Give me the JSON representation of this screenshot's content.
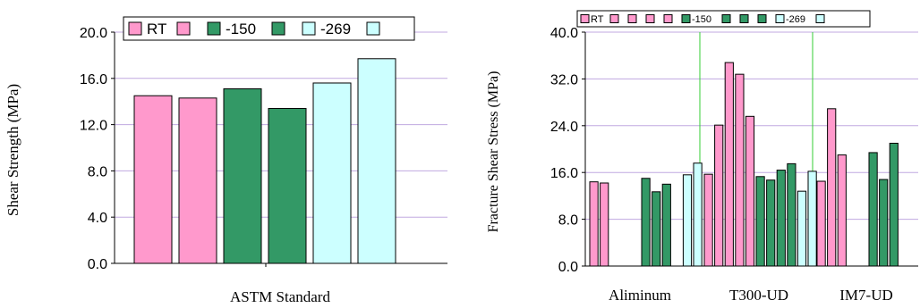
{
  "colors": {
    "rt": "#ff99cc",
    "c150": "#339966",
    "c269": "#ccffff",
    "edge": "#000000",
    "grid": "#c0a8e0",
    "divider": "#33cc33"
  },
  "chart_data": [
    {
      "type": "bar",
      "title": "",
      "xlabel": "ASTM Standard",
      "ylabel": "Shear Strength (MPa)",
      "ylim": [
        0,
        20
      ],
      "yticks": [
        "0.0",
        "4.0",
        "8.0",
        "12.0",
        "16.0",
        "20.0"
      ],
      "grid": true,
      "legend_position": "top",
      "legend": [
        {
          "label": "RT",
          "color": "#ff99cc"
        },
        {
          "label": "",
          "color": "#ff99cc"
        },
        {
          "label": "-150",
          "color": "#339966"
        },
        {
          "label": "",
          "color": "#339966"
        },
        {
          "label": "-269",
          "color": "#ccffff"
        },
        {
          "label": "",
          "color": "#ccffff"
        }
      ],
      "bars": [
        {
          "value": 14.5,
          "color": "#ff99cc"
        },
        {
          "value": 14.3,
          "color": "#ff99cc"
        },
        {
          "value": 15.1,
          "color": "#339966"
        },
        {
          "value": 13.4,
          "color": "#339966"
        },
        {
          "value": 15.6,
          "color": "#ccffff"
        },
        {
          "value": 17.7,
          "color": "#ccffff"
        }
      ]
    },
    {
      "type": "bar",
      "title": "",
      "xlabel": "",
      "ylabel": "Fracture Shear Stress (MPa)",
      "ylim": [
        0,
        40
      ],
      "yticks": [
        "0.0",
        "8.0",
        "16.0",
        "24.0",
        "32.0",
        "40.0"
      ],
      "grid": true,
      "legend_position": "top",
      "legend": [
        {
          "label": "RT",
          "color": "#ff99cc"
        },
        {
          "label": "",
          "color": "#ff99cc"
        },
        {
          "label": "",
          "color": "#ff99cc"
        },
        {
          "label": "",
          "color": "#ff99cc"
        },
        {
          "label": "",
          "color": "#ff99cc"
        },
        {
          "label": "-150",
          "color": "#339966"
        },
        {
          "label": "",
          "color": "#339966"
        },
        {
          "label": "",
          "color": "#339966"
        },
        {
          "label": "",
          "color": "#339966"
        },
        {
          "label": "-269",
          "color": "#ccffff"
        },
        {
          "label": "",
          "color": "#ccffff"
        }
      ],
      "groups": [
        {
          "label": "Aliminum",
          "bars": [
            {
              "value": 14.4,
              "color": "#ff99cc"
            },
            {
              "value": 14.2,
              "color": "#ff99cc"
            },
            {
              "value": 0,
              "color": "#ff99cc"
            },
            {
              "value": 0,
              "color": "#ff99cc"
            },
            {
              "value": 0,
              "color": "#ff99cc"
            },
            {
              "value": 15.0,
              "color": "#339966"
            },
            {
              "value": 12.7,
              "color": "#339966"
            },
            {
              "value": 14.0,
              "color": "#339966"
            },
            {
              "value": 0,
              "color": "#339966"
            },
            {
              "value": 15.6,
              "color": "#ccffff"
            },
            {
              "value": 17.6,
              "color": "#ccffff"
            }
          ]
        },
        {
          "label": "T300-UD",
          "bars": [
            {
              "value": 15.7,
              "color": "#ff99cc"
            },
            {
              "value": 24.1,
              "color": "#ff99cc"
            },
            {
              "value": 34.8,
              "color": "#ff99cc"
            },
            {
              "value": 32.8,
              "color": "#ff99cc"
            },
            {
              "value": 25.6,
              "color": "#ff99cc"
            },
            {
              "value": 15.3,
              "color": "#339966"
            },
            {
              "value": 14.7,
              "color": "#339966"
            },
            {
              "value": 16.4,
              "color": "#339966"
            },
            {
              "value": 17.5,
              "color": "#339966"
            },
            {
              "value": 12.8,
              "color": "#ccffff"
            },
            {
              "value": 16.2,
              "color": "#ccffff"
            }
          ]
        },
        {
          "label": "IM7-UD",
          "bars": [
            {
              "value": 14.5,
              "color": "#ff99cc"
            },
            {
              "value": 26.9,
              "color": "#ff99cc"
            },
            {
              "value": 19.0,
              "color": "#ff99cc"
            },
            {
              "value": 0,
              "color": "#ff99cc"
            },
            {
              "value": 0,
              "color": "#ff99cc"
            },
            {
              "value": 19.4,
              "color": "#339966"
            },
            {
              "value": 14.8,
              "color": "#339966"
            },
            {
              "value": 21.0,
              "color": "#339966"
            },
            {
              "value": 0,
              "color": "#339966"
            },
            {
              "value": 0,
              "color": "#ccffff"
            },
            {
              "value": 0,
              "color": "#ccffff"
            }
          ]
        }
      ]
    }
  ]
}
